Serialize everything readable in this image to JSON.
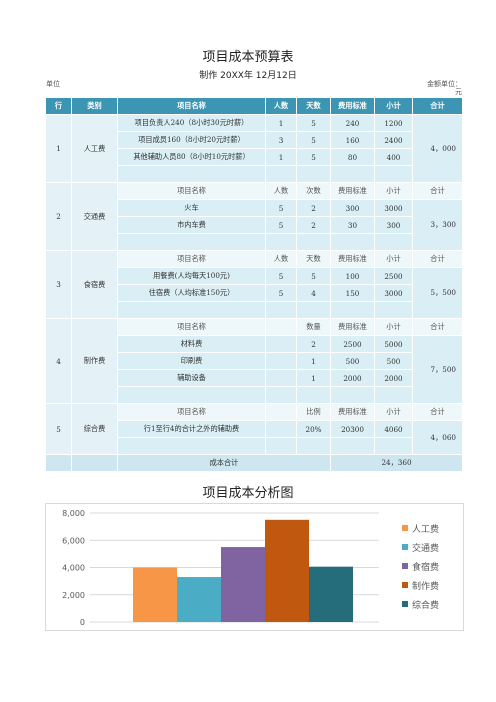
{
  "header": {
    "title": "项目成本预算表",
    "subtitle": "制作 20XX年 12月12日",
    "unit_left": "单位",
    "unit_right": "金额单位：元"
  },
  "columns": [
    "行",
    "类别",
    "项目名称",
    "人数",
    "天数",
    "费用标准",
    "小计",
    "合计"
  ],
  "sections": [
    {
      "no": "1",
      "category": "人工费",
      "total": "4，000",
      "rows": [
        {
          "name": "项目负责人240（8小时30元时薪）",
          "c1": "1",
          "c2": "5",
          "std": "240",
          "sub": "1200"
        },
        {
          "name": "项目成员160（8小时20元时薪）",
          "c1": "3",
          "c2": "5",
          "std": "160",
          "sub": "2400"
        },
        {
          "name": "其他辅助人员80（8小时10元时薪）",
          "c1": "1",
          "c2": "5",
          "std": "80",
          "sub": "400"
        }
      ]
    },
    {
      "no": "2",
      "category": "交通费",
      "total": "3，300",
      "header": {
        "name": "项目名称",
        "c1": "人数",
        "c2": "次数",
        "std": "费用标准",
        "sub": "小计",
        "tot": "合计"
      },
      "rows": [
        {
          "name": "火车",
          "c1": "5",
          "c2": "2",
          "std": "300",
          "sub": "3000"
        },
        {
          "name": "市内车费",
          "c1": "5",
          "c2": "2",
          "std": "30",
          "sub": "300"
        }
      ]
    },
    {
      "no": "3",
      "category": "食宿费",
      "total": "5，500",
      "header": {
        "name": "项目名称",
        "c1": "人数",
        "c2": "天数",
        "std": "费用标准",
        "sub": "小计",
        "tot": "合计"
      },
      "rows": [
        {
          "name": "用餐费(人均每天100元)",
          "c1": "5",
          "c2": "5",
          "std": "100",
          "sub": "2500"
        },
        {
          "name": "住宿费（人均标准150元）",
          "c1": "5",
          "c2": "4",
          "std": "150",
          "sub": "3000"
        }
      ]
    },
    {
      "no": "4",
      "category": "制作费",
      "total": "7，500",
      "header": {
        "name": "项目名称",
        "c1": "",
        "c2": "数量",
        "std": "费用标准",
        "sub": "小计",
        "tot": "合计"
      },
      "rows": [
        {
          "name": "材料费",
          "c1": "",
          "c2": "2",
          "std": "2500",
          "sub": "5000"
        },
        {
          "name": "印刷费",
          "c1": "",
          "c2": "1",
          "std": "500",
          "sub": "500"
        },
        {
          "name": "辅助设备",
          "c1": "",
          "c2": "1",
          "std": "2000",
          "sub": "2000"
        }
      ]
    },
    {
      "no": "5",
      "category": "综合费",
      "total": "4，060",
      "header": {
        "name": "项目名称",
        "c1": "",
        "c2": "比例",
        "std": "费用标准",
        "sub": "小计",
        "tot": "合计"
      },
      "rows": [
        {
          "name": "行1至行4的合计之外的辅助费",
          "c1": "",
          "c2": "20%",
          "std": "20300",
          "sub": "4060"
        }
      ]
    }
  ],
  "grand_total": {
    "label": "成本合计",
    "value": "24，360"
  },
  "chart_title": "项目成本分析图",
  "chart_data": {
    "type": "bar",
    "categories": [
      "人工费",
      "交通费",
      "食宿费",
      "制作费",
      "综合费"
    ],
    "values": [
      4000,
      3300,
      5500,
      7500,
      4060
    ],
    "colors": [
      "#f79646",
      "#4bacc6",
      "#8064a2",
      "#c0590f",
      "#266d7b"
    ],
    "yticks": [
      "0",
      "2,000",
      "4,000",
      "6,000",
      "8,000"
    ],
    "ylim": [
      0,
      8000
    ],
    "grid": true,
    "legend": "right"
  }
}
